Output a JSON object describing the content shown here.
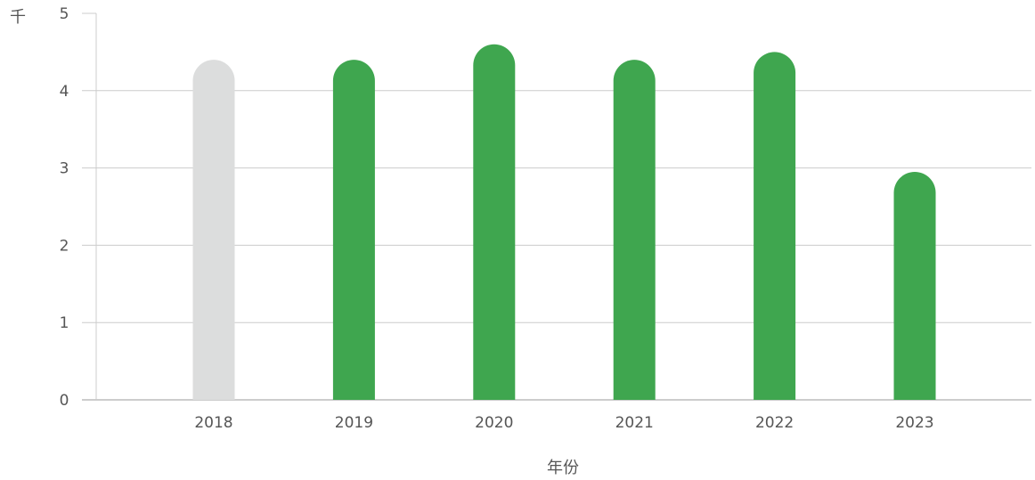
{
  "chart_data": {
    "type": "bar",
    "title": "",
    "xlabel": "年份",
    "ylabel": "千",
    "categories": [
      "2018",
      "2019",
      "2020",
      "2021",
      "2022",
      "2023"
    ],
    "values": [
      4.4,
      4.4,
      4.6,
      4.4,
      4.5,
      2.95
    ],
    "bar_colors": [
      "#dcdddd",
      "#3fa64f",
      "#3fa64f",
      "#3fa64f",
      "#3fa64f",
      "#3fa64f"
    ],
    "ylim": [
      0,
      5
    ],
    "yticks": [
      "0",
      "1",
      "2",
      "3",
      "4",
      "5"
    ],
    "grid": true,
    "legend": "none"
  }
}
